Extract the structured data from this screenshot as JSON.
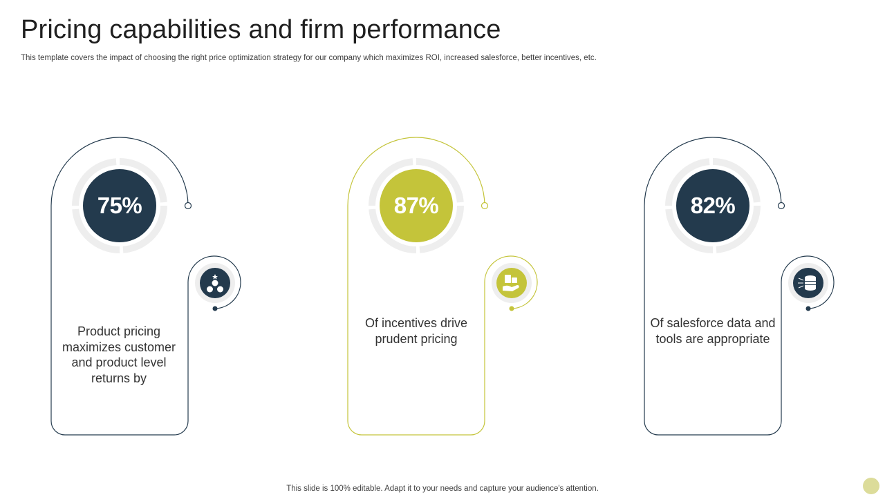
{
  "title": "Pricing capabilities and firm performance",
  "subtitle": "This template covers the impact of choosing the right price optimization strategy for our company which maximizes ROI, increased salesforce, better incentives, etc.",
  "footer": "This slide is 100% editable. Adapt it to your needs and capture your audience's attention.",
  "colors": {
    "navy": "#233a4d",
    "olive": "#c4c43a",
    "ring": "#eeeeee"
  },
  "cards": [
    {
      "percent": "75%",
      "text": "Product pricing maximizes customer and product level returns by",
      "color": "#233a4d",
      "icon": "money-bags-icon"
    },
    {
      "percent": "87%",
      "text": "Of incentives drive prudent pricing",
      "color": "#c4c43a",
      "icon": "gift-in-hand-icon"
    },
    {
      "percent": "82%",
      "text": "Of salesforce data and tools are appropriate",
      "color": "#233a4d",
      "icon": "database-icon"
    }
  ]
}
